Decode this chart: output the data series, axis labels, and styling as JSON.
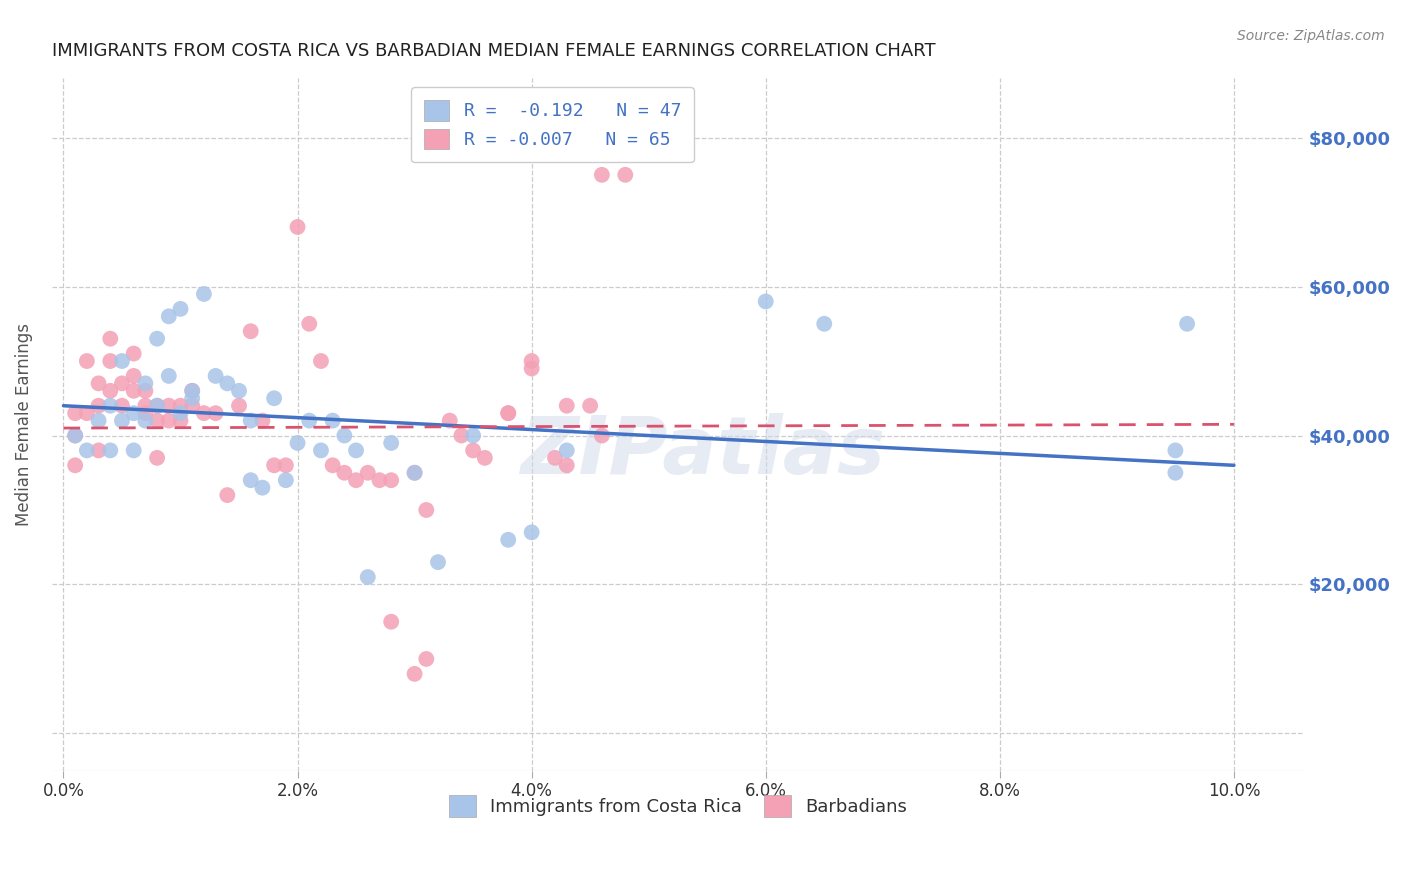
{
  "title": "IMMIGRANTS FROM COSTA RICA VS BARBADIAN MEDIAN FEMALE EARNINGS CORRELATION CHART",
  "source": "Source: ZipAtlas.com",
  "xlabel_vals": [
    0.0,
    0.02,
    0.04,
    0.06,
    0.08,
    0.1
  ],
  "ylabel": "Median Female Earnings",
  "ylabel_ticks": [
    0,
    20000,
    40000,
    60000,
    80000
  ],
  "ylabel_labels": [
    "",
    "$20,000",
    "$40,000",
    "$60,000",
    "$80,000"
  ],
  "xlim": [
    -0.001,
    0.106
  ],
  "ylim": [
    -5000,
    88000
  ],
  "legend_line1": "R =  -0.192   N = 47",
  "legend_line2": "R = -0.007   N = 65",
  "color_blue": "#a8c4e8",
  "color_pink": "#f4a0b5",
  "color_blue_text": "#4472c4",
  "color_pink_text": "#d9536f",
  "watermark": "ZIPatlas",
  "blue_scatter_x": [
    0.001,
    0.002,
    0.003,
    0.004,
    0.004,
    0.005,
    0.005,
    0.006,
    0.006,
    0.007,
    0.007,
    0.008,
    0.008,
    0.009,
    0.009,
    0.01,
    0.01,
    0.011,
    0.011,
    0.012,
    0.013,
    0.014,
    0.015,
    0.016,
    0.016,
    0.017,
    0.018,
    0.019,
    0.02,
    0.021,
    0.022,
    0.023,
    0.024,
    0.025,
    0.026,
    0.028,
    0.03,
    0.032,
    0.035,
    0.038,
    0.04,
    0.043,
    0.06,
    0.065,
    0.095,
    0.095,
    0.096
  ],
  "blue_scatter_y": [
    40000,
    38000,
    42000,
    44000,
    38000,
    50000,
    42000,
    43000,
    38000,
    47000,
    42000,
    53000,
    44000,
    56000,
    48000,
    57000,
    43000,
    46000,
    45000,
    59000,
    48000,
    47000,
    46000,
    34000,
    42000,
    33000,
    45000,
    34000,
    39000,
    42000,
    38000,
    42000,
    40000,
    38000,
    21000,
    39000,
    35000,
    23000,
    40000,
    26000,
    27000,
    38000,
    58000,
    55000,
    35000,
    38000,
    55000
  ],
  "pink_scatter_x": [
    0.001,
    0.001,
    0.001,
    0.002,
    0.002,
    0.003,
    0.003,
    0.003,
    0.004,
    0.004,
    0.004,
    0.005,
    0.005,
    0.006,
    0.006,
    0.006,
    0.007,
    0.007,
    0.007,
    0.008,
    0.008,
    0.008,
    0.009,
    0.009,
    0.01,
    0.01,
    0.011,
    0.011,
    0.012,
    0.013,
    0.014,
    0.015,
    0.016,
    0.017,
    0.018,
    0.019,
    0.02,
    0.021,
    0.022,
    0.023,
    0.024,
    0.025,
    0.026,
    0.027,
    0.028,
    0.03,
    0.031,
    0.033,
    0.035,
    0.038,
    0.04,
    0.043,
    0.045,
    0.046,
    0.048,
    0.028,
    0.03,
    0.031,
    0.034,
    0.036,
    0.038,
    0.04,
    0.042,
    0.043,
    0.046
  ],
  "pink_scatter_y": [
    43000,
    40000,
    36000,
    50000,
    43000,
    47000,
    44000,
    38000,
    53000,
    46000,
    50000,
    47000,
    44000,
    51000,
    48000,
    46000,
    46000,
    44000,
    43000,
    44000,
    42000,
    37000,
    44000,
    42000,
    44000,
    42000,
    46000,
    44000,
    43000,
    43000,
    32000,
    44000,
    54000,
    42000,
    36000,
    36000,
    68000,
    55000,
    50000,
    36000,
    35000,
    34000,
    35000,
    34000,
    15000,
    35000,
    30000,
    42000,
    38000,
    43000,
    50000,
    36000,
    44000,
    40000,
    75000,
    34000,
    8000,
    10000,
    40000,
    37000,
    43000,
    49000,
    37000,
    44000,
    75000
  ],
  "blue_trend_x": [
    0.0,
    0.1
  ],
  "blue_trend_y": [
    44000,
    36000
  ],
  "pink_trend_x": [
    0.0,
    0.1
  ],
  "pink_trend_y": [
    41000,
    41500
  ],
  "bg_color": "#ffffff",
  "grid_color": "#cccccc",
  "title_color": "#222222",
  "right_label_color": "#4472c4"
}
